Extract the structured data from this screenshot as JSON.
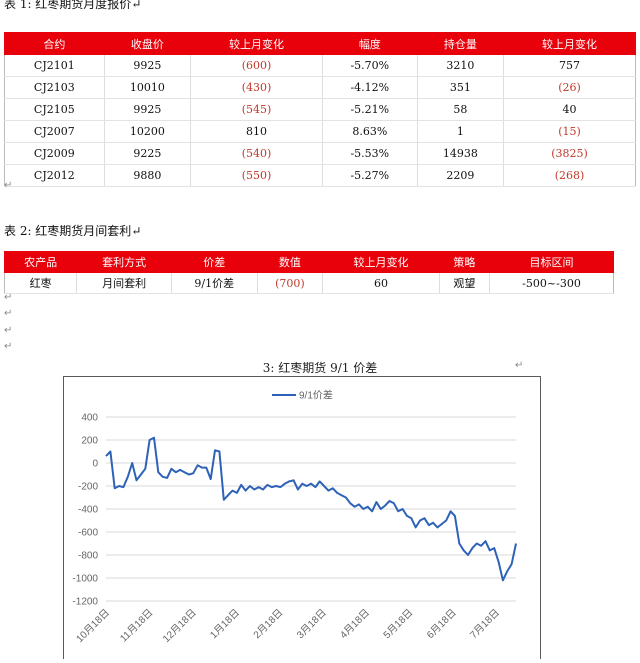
{
  "table1": {
    "caption": "表 1:  红枣期货月度报价",
    "headers": [
      "合约",
      "收盘价",
      "较上月变化",
      "幅度",
      "持仓量",
      "较上月变化"
    ],
    "rows": [
      [
        "CJ2101",
        "9925",
        "(600)",
        "-5.70%",
        "3210",
        "757"
      ],
      [
        "CJ2103",
        "10010",
        "(430)",
        "-4.12%",
        "351",
        "(26)"
      ],
      [
        "CJ2105",
        "9925",
        "(545)",
        "-5.21%",
        "58",
        "40"
      ],
      [
        "CJ2007",
        "10200",
        "810",
        "8.63%",
        "1",
        "(15)"
      ],
      [
        "CJ2009",
        "9225",
        "(540)",
        "-5.53%",
        "14938",
        "(3825)"
      ],
      [
        "CJ2012",
        "9880",
        "(550)",
        "-5.27%",
        "2209",
        "(268)"
      ]
    ]
  },
  "table2": {
    "caption": "表 2:  红枣期货月间套利",
    "headers": [
      "农产品",
      "套利方式",
      "价差",
      "数值",
      "较上月变化",
      "策略",
      "目标区间"
    ],
    "rows": [
      [
        "红枣",
        "月间套利",
        "9/1价差",
        "(700)",
        "60",
        "观望",
        "-500~-300"
      ]
    ]
  },
  "return_mark": "↵",
  "chart_caption": "3:  红枣期货 9/1 价差",
  "colors": {
    "header_red": "#e8000b",
    "negative_red": "#c0392b",
    "line_blue": "#2e62b8"
  },
  "chart_data": {
    "type": "line",
    "title": "",
    "xlabel": "",
    "ylabel": "",
    "ylim": [
      -1200,
      400
    ],
    "yticks": [
      400,
      200,
      0,
      -200,
      -400,
      -600,
      -800,
      -1000,
      -1200
    ],
    "xticks": [
      "10月18日",
      "11月18日",
      "12月18日",
      "1月18日",
      "2月18日",
      "3月18日",
      "4月18日",
      "5月18日",
      "6月18日",
      "7月18日"
    ],
    "x_range": [
      0,
      94
    ],
    "legend_position": "top-center",
    "grid": true,
    "series": [
      {
        "name": "9/1价差",
        "x": [
          0,
          1,
          2,
          3,
          4,
          5,
          6,
          7,
          8,
          9,
          10,
          11,
          12,
          13,
          14,
          15,
          16,
          17,
          18,
          19,
          20,
          21,
          22,
          23,
          24,
          25,
          26,
          27,
          28,
          29,
          30,
          31,
          32,
          33,
          34,
          35,
          36,
          37,
          38,
          39,
          40,
          41,
          42,
          43,
          44,
          45,
          46,
          47,
          48,
          49,
          50,
          51,
          52,
          53,
          54,
          55,
          56,
          57,
          58,
          59,
          60,
          61,
          62,
          63,
          64,
          65,
          66,
          67,
          68,
          69,
          70,
          71,
          72,
          73,
          74,
          75,
          76,
          77,
          78,
          79,
          80,
          81,
          82,
          83,
          84,
          85,
          86,
          87,
          88,
          89,
          90,
          91,
          92,
          93,
          94
        ],
        "values": [
          60,
          100,
          -220,
          -200,
          -210,
          -120,
          0,
          -150,
          -100,
          -50,
          200,
          220,
          -80,
          -120,
          -130,
          -50,
          -80,
          -60,
          -80,
          -100,
          -90,
          -20,
          -40,
          -40,
          -140,
          110,
          100,
          -320,
          -280,
          -240,
          -260,
          -190,
          -240,
          -200,
          -230,
          -210,
          -230,
          -190,
          -210,
          -200,
          -210,
          -180,
          -160,
          -150,
          -230,
          -180,
          -200,
          -180,
          -210,
          -160,
          -200,
          -240,
          -220,
          -260,
          -280,
          -300,
          -350,
          -380,
          -360,
          -400,
          -380,
          -420,
          -340,
          -400,
          -370,
          -330,
          -350,
          -420,
          -400,
          -460,
          -480,
          -560,
          -500,
          -480,
          -540,
          -520,
          -560,
          -530,
          -500,
          -420,
          -460,
          -700,
          -760,
          -800,
          -740,
          -700,
          -720,
          -680,
          -760,
          -740,
          -860,
          -1020,
          -940,
          -880,
          -700
        ]
      }
    ]
  }
}
